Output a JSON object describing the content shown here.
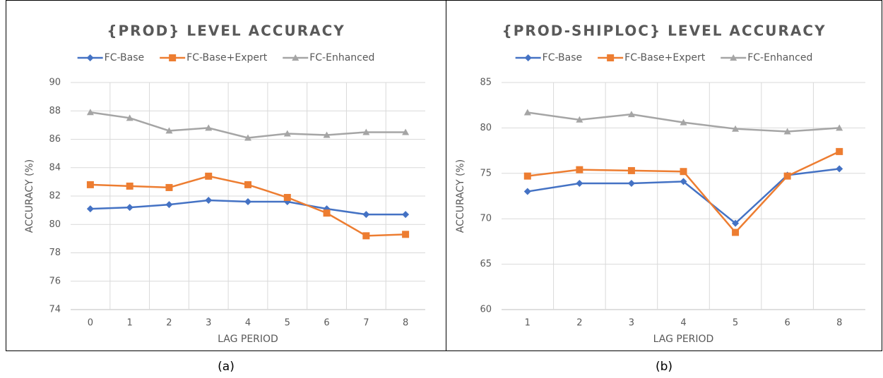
{
  "chart_data": [
    {
      "type": "line",
      "title": "{PROD} LEVEL ACCURACY",
      "caption": "(a)",
      "x_label": "LAG PERIOD",
      "y_label": "ACCURACY (%)",
      "categories": [
        "0",
        "1",
        "2",
        "3",
        "4",
        "5",
        "6",
        "7",
        "8"
      ],
      "series": [
        {
          "name": "FC-Base",
          "color": "#4472c4",
          "marker": "diamond",
          "values": [
            81.1,
            81.2,
            81.4,
            81.7,
            81.6,
            81.6,
            81.1,
            80.7,
            80.7
          ]
        },
        {
          "name": "FC-Base+Expert",
          "color": "#ed7d31",
          "marker": "square",
          "values": [
            82.8,
            82.7,
            82.6,
            83.4,
            82.8,
            81.9,
            80.8,
            79.2,
            79.3
          ]
        },
        {
          "name": "FC-Enhanced",
          "color": "#a5a5a5",
          "marker": "triangle",
          "values": [
            87.9,
            87.5,
            86.6,
            86.8,
            86.1,
            86.4,
            86.3,
            86.5,
            86.5
          ]
        }
      ],
      "ylim": [
        74,
        90
      ],
      "yticks": [
        74,
        76,
        78,
        80,
        82,
        84,
        86,
        88,
        90
      ],
      "grid": true,
      "legend": "top"
    },
    {
      "type": "line",
      "title": "{PROD-SHIPLOC} LEVEL ACCURACY",
      "caption": "(b)",
      "x_label": "LAG PERIOD",
      "y_label": "ACCURACY (%)",
      "categories": [
        "1",
        "2",
        "3",
        "4",
        "5",
        "6",
        "8"
      ],
      "series": [
        {
          "name": "FC-Base",
          "color": "#4472c4",
          "marker": "diamond",
          "values": [
            73.0,
            73.9,
            73.9,
            74.1,
            69.5,
            74.8,
            75.5
          ]
        },
        {
          "name": "FC-Base+Expert",
          "color": "#ed7d31",
          "marker": "square",
          "values": [
            74.7,
            75.4,
            75.3,
            75.2,
            68.5,
            74.7,
            77.4
          ]
        },
        {
          "name": "FC-Enhanced",
          "color": "#a5a5a5",
          "marker": "triangle",
          "values": [
            81.7,
            80.9,
            81.5,
            80.6,
            79.9,
            79.6,
            80.0
          ]
        }
      ],
      "ylim": [
        60,
        85
      ],
      "yticks": [
        60,
        65,
        70,
        75,
        80,
        85
      ],
      "grid": true,
      "legend": "top"
    }
  ]
}
